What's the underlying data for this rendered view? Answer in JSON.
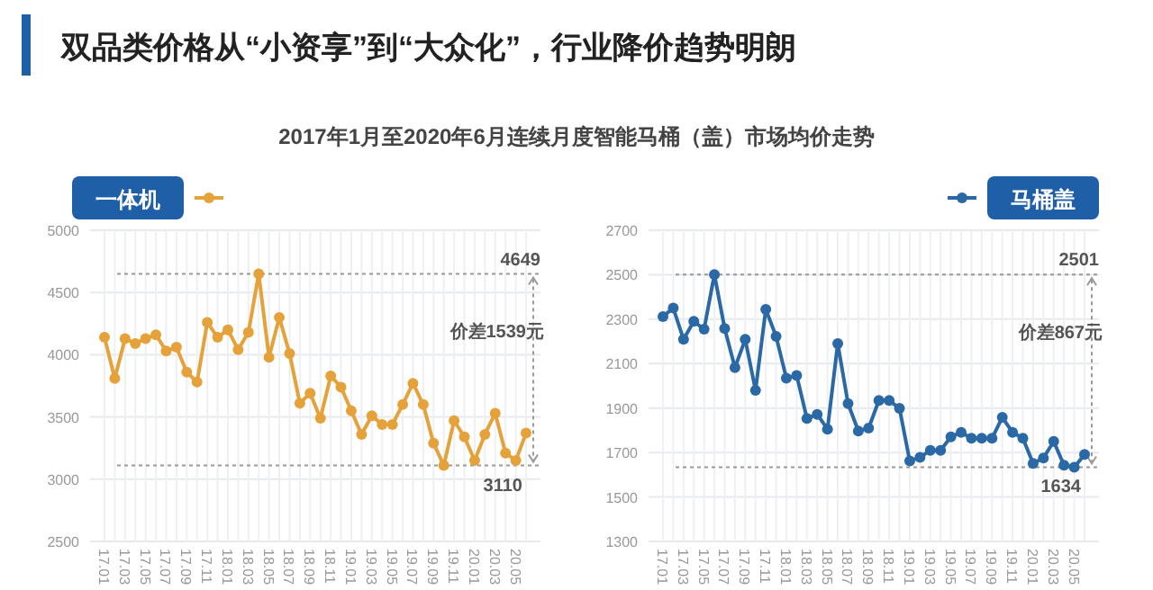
{
  "chart_data": [
    {
      "type": "line",
      "title": "双品类价格从“小资享”到“大众化”，行业降价趋势明朗",
      "subtitle": "2017年1月至2020年6月连续月度智能马桶（盖）市场均价走势",
      "categories": [
        "17.01",
        null,
        "17.03",
        null,
        "17.05",
        null,
        "17.07",
        null,
        "17.09",
        null,
        "17.11",
        null,
        "18.01",
        null,
        "18.03",
        null,
        "18.05",
        null,
        "18.07",
        null,
        "18.09",
        null,
        "18.11",
        null,
        "19.01",
        null,
        "19.03",
        null,
        "19.05",
        null,
        "19.07",
        null,
        "19.09",
        null,
        "19.11",
        null,
        "20.01",
        null,
        "20.03",
        null,
        "20.05",
        null
      ],
      "series": [
        {
          "name": "一体机",
          "color": "#e6a23a",
          "values": [
            4140,
            3810,
            4130,
            4090,
            4130,
            4160,
            4030,
            4060,
            3860,
            3780,
            4260,
            4140,
            4200,
            4040,
            4180,
            4649,
            3980,
            4300,
            4010,
            3610,
            3690,
            3490,
            3830,
            3740,
            3550,
            3360,
            3510,
            3440,
            3440,
            3600,
            3770,
            3600,
            3290,
            3110,
            3470,
            3340,
            3150,
            3360,
            3530,
            3210,
            3150,
            3370
          ]
        }
      ],
      "ylim": [
        2500,
        5000
      ],
      "yticks": [
        2500,
        3000,
        3500,
        4000,
        4500,
        5000
      ],
      "grid": true,
      "marker": "circle",
      "ref_lines": [
        {
          "axis": "y",
          "value": 4649,
          "label": "4649",
          "line_style": "dotted"
        },
        {
          "axis": "y",
          "value": 3110,
          "label": "3110",
          "line_style": "dotted"
        }
      ],
      "annotations": [
        "价差1539元"
      ]
    },
    {
      "type": "line",
      "categories": [
        "17.01",
        null,
        "17.03",
        null,
        "17.05",
        null,
        "17.07",
        null,
        "17.09",
        null,
        "17.11",
        null,
        "18.01",
        null,
        "18.03",
        null,
        "18.05",
        null,
        "18.07",
        null,
        "18.09",
        null,
        "18.11",
        null,
        "19.01",
        null,
        "19.03",
        null,
        "19.05",
        null,
        "19.07",
        null,
        "19.09",
        null,
        "19.11",
        null,
        "20.01",
        null,
        "20.03",
        null,
        "20.05",
        null
      ],
      "series": [
        {
          "name": "马桶盖",
          "color": "#2b69a6",
          "values": [
            2312,
            2350,
            2209,
            2290,
            2255,
            2501,
            2258,
            2082,
            2209,
            1980,
            2344,
            2223,
            2034,
            2047,
            1853,
            1872,
            1805,
            2190,
            1920,
            1797,
            1810,
            1934,
            1934,
            1899,
            1662,
            1678,
            1710,
            1710,
            1770,
            1791,
            1764,
            1764,
            1764,
            1858,
            1791,
            1764,
            1651,
            1675,
            1750,
            1643,
            1634,
            1691
          ]
        }
      ],
      "ylim": [
        1300,
        2700
      ],
      "yticks": [
        1300,
        1500,
        1700,
        1900,
        2100,
        2300,
        2500,
        2700
      ],
      "grid": true,
      "marker": "circle",
      "ref_lines": [
        {
          "axis": "y",
          "value": 2501,
          "label": "2501",
          "line_style": "dotted"
        },
        {
          "axis": "y",
          "value": 1634,
          "label": "1634",
          "line_style": "dotted"
        }
      ],
      "annotations": [
        "价差867元"
      ]
    }
  ]
}
